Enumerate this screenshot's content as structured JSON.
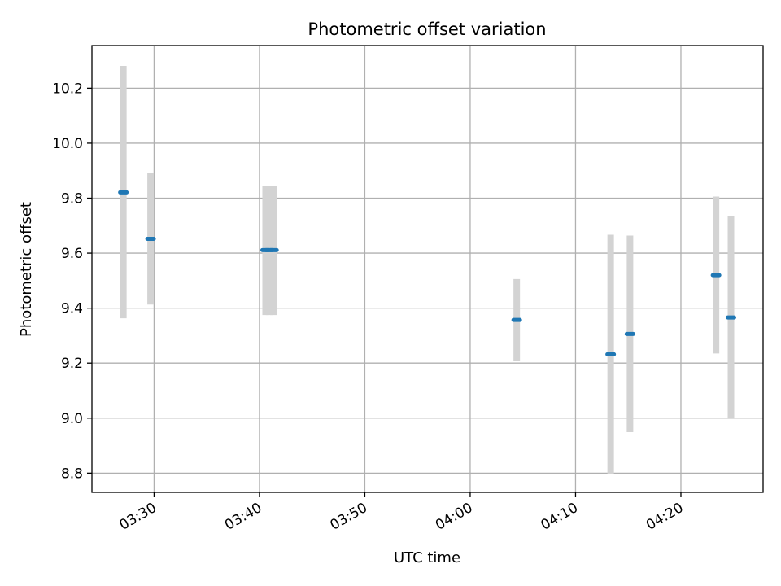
{
  "chart_data": {
    "type": "scatter",
    "title": "Photometric offset variation",
    "xlabel": "UTC time",
    "ylabel": "Photometric offset",
    "grid": true,
    "x_ticks": [
      "03:30",
      "03:40",
      "03:50",
      "04:00",
      "04:10",
      "04:20"
    ],
    "y_ticks": [
      "8.8",
      "9.0",
      "9.2",
      "9.4",
      "9.6",
      "9.8",
      "10.0",
      "10.2"
    ],
    "xlim": [
      "03:24:06",
      "04:27:48"
    ],
    "ylim": [
      8.73,
      10.355
    ],
    "series": [
      {
        "marker_color": "#1f77b4",
        "errorbar_color": "#d3d3d3",
        "points": [
          {
            "x": "03:27:05",
            "y": 9.821,
            "ylow": 9.363,
            "yhigh": 10.281
          },
          {
            "x": "03:29:40",
            "y": 9.652,
            "ylow": 9.413,
            "yhigh": 9.893
          },
          {
            "x": "03:40:35",
            "y": 9.611,
            "ylow": 9.375,
            "yhigh": 9.846
          },
          {
            "x": "03:40:55",
            "y": 9.611,
            "ylow": 9.375,
            "yhigh": 9.846
          },
          {
            "x": "03:41:20",
            "y": 9.611,
            "ylow": 9.375,
            "yhigh": 9.846
          },
          {
            "x": "04:04:25",
            "y": 9.357,
            "ylow": 9.208,
            "yhigh": 9.506
          },
          {
            "x": "04:13:20",
            "y": 9.232,
            "ylow": 8.797,
            "yhigh": 9.667
          },
          {
            "x": "04:15:10",
            "y": 9.306,
            "ylow": 8.949,
            "yhigh": 9.664
          },
          {
            "x": "04:23:20",
            "y": 9.52,
            "ylow": 9.235,
            "yhigh": 9.806
          },
          {
            "x": "04:24:45",
            "y": 9.366,
            "ylow": 8.997,
            "yhigh": 9.734
          }
        ]
      }
    ]
  }
}
